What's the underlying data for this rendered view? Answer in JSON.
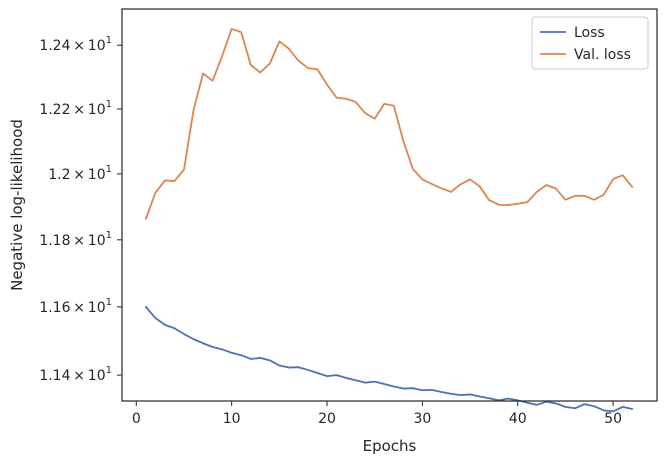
{
  "chart_data": {
    "type": "line",
    "xlabel": "Epochs",
    "ylabel": "Negative log-likelihood",
    "xlim": [
      -1.5,
      54.6
    ],
    "ylim": [
      11.325,
      12.515
    ],
    "xticks": [
      0,
      10,
      20,
      30,
      40,
      50
    ],
    "yticks": [
      {
        "value": 11.4,
        "mantissa": "1.14",
        "base": "10",
        "exp": "1"
      },
      {
        "value": 11.6,
        "mantissa": "1.16",
        "base": "10",
        "exp": "1"
      },
      {
        "value": 11.8,
        "mantissa": "1.18",
        "base": "10",
        "exp": "1"
      },
      {
        "value": 12.0,
        "mantissa": "1.2",
        "base": "10",
        "exp": "1"
      },
      {
        "value": 12.2,
        "mantissa": "1.22",
        "base": "10",
        "exp": "1"
      },
      {
        "value": 12.4,
        "mantissa": "1.24",
        "base": "10",
        "exp": "1"
      }
    ],
    "y_scale": "log",
    "grid": false,
    "legend_position": "top-right",
    "x": [
      1,
      2,
      3,
      4,
      5,
      6,
      7,
      8,
      9,
      10,
      11,
      12,
      13,
      14,
      15,
      16,
      17,
      18,
      19,
      20,
      21,
      22,
      23,
      24,
      25,
      26,
      27,
      28,
      29,
      30,
      31,
      32,
      33,
      34,
      35,
      36,
      37,
      38,
      39,
      40,
      41,
      42,
      43,
      44,
      45,
      46,
      47,
      48,
      49,
      50,
      51,
      52
    ],
    "series": [
      {
        "name": "Loss",
        "color": "#4c72b0",
        "values": [
          11.6,
          11.567,
          11.547,
          11.537,
          11.52,
          11.505,
          11.493,
          11.482,
          11.475,
          11.465,
          11.458,
          11.447,
          11.45,
          11.443,
          11.428,
          11.422,
          11.423,
          11.415,
          11.406,
          11.397,
          11.4,
          11.392,
          11.385,
          11.378,
          11.381,
          11.374,
          11.367,
          11.361,
          11.362,
          11.356,
          11.357,
          11.351,
          11.346,
          11.342,
          11.344,
          11.338,
          11.333,
          11.327,
          11.332,
          11.327,
          11.32,
          11.314,
          11.323,
          11.318,
          11.308,
          11.304,
          11.316,
          11.31,
          11.298,
          11.295,
          11.308,
          11.302
        ]
      },
      {
        "name": "Val. loss",
        "color": "#dd8452",
        "values": [
          11.863,
          11.942,
          11.98,
          11.978,
          12.013,
          12.196,
          12.311,
          12.288,
          12.366,
          12.452,
          12.441,
          12.338,
          12.314,
          12.342,
          12.412,
          12.389,
          12.351,
          12.328,
          12.324,
          12.276,
          12.235,
          12.232,
          12.222,
          12.187,
          12.17,
          12.216,
          12.21,
          12.101,
          12.015,
          11.983,
          11.969,
          11.956,
          11.945,
          11.968,
          11.983,
          11.962,
          11.92,
          11.906,
          11.905,
          11.909,
          11.914,
          11.945,
          11.966,
          11.955,
          11.921,
          11.933,
          11.933,
          11.921,
          11.936,
          11.984,
          11.996,
          11.96
        ]
      }
    ]
  }
}
